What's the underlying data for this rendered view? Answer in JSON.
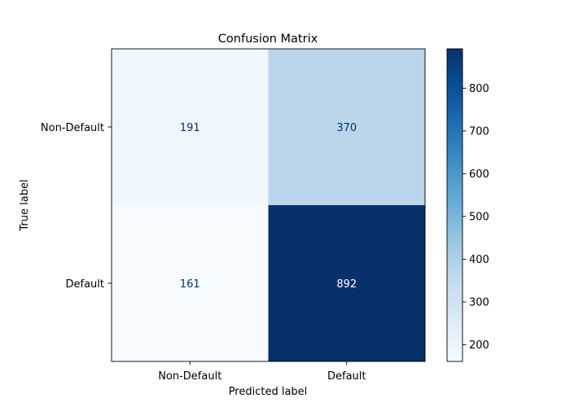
{
  "chart_data": {
    "type": "heatmap",
    "title": "Confusion Matrix",
    "xlabel": "Predicted label",
    "ylabel": "True label",
    "x_categories": [
      "Non-Default",
      "Default"
    ],
    "y_categories": [
      "Non-Default",
      "Default"
    ],
    "values": [
      [
        191,
        370
      ],
      [
        161,
        892
      ]
    ],
    "colormap": "Blues",
    "colorbar": {
      "range": [
        161,
        892
      ],
      "ticks": [
        200,
        300,
        400,
        500,
        600,
        700,
        800
      ]
    },
    "grid": false,
    "legend": "colorbar-right"
  }
}
